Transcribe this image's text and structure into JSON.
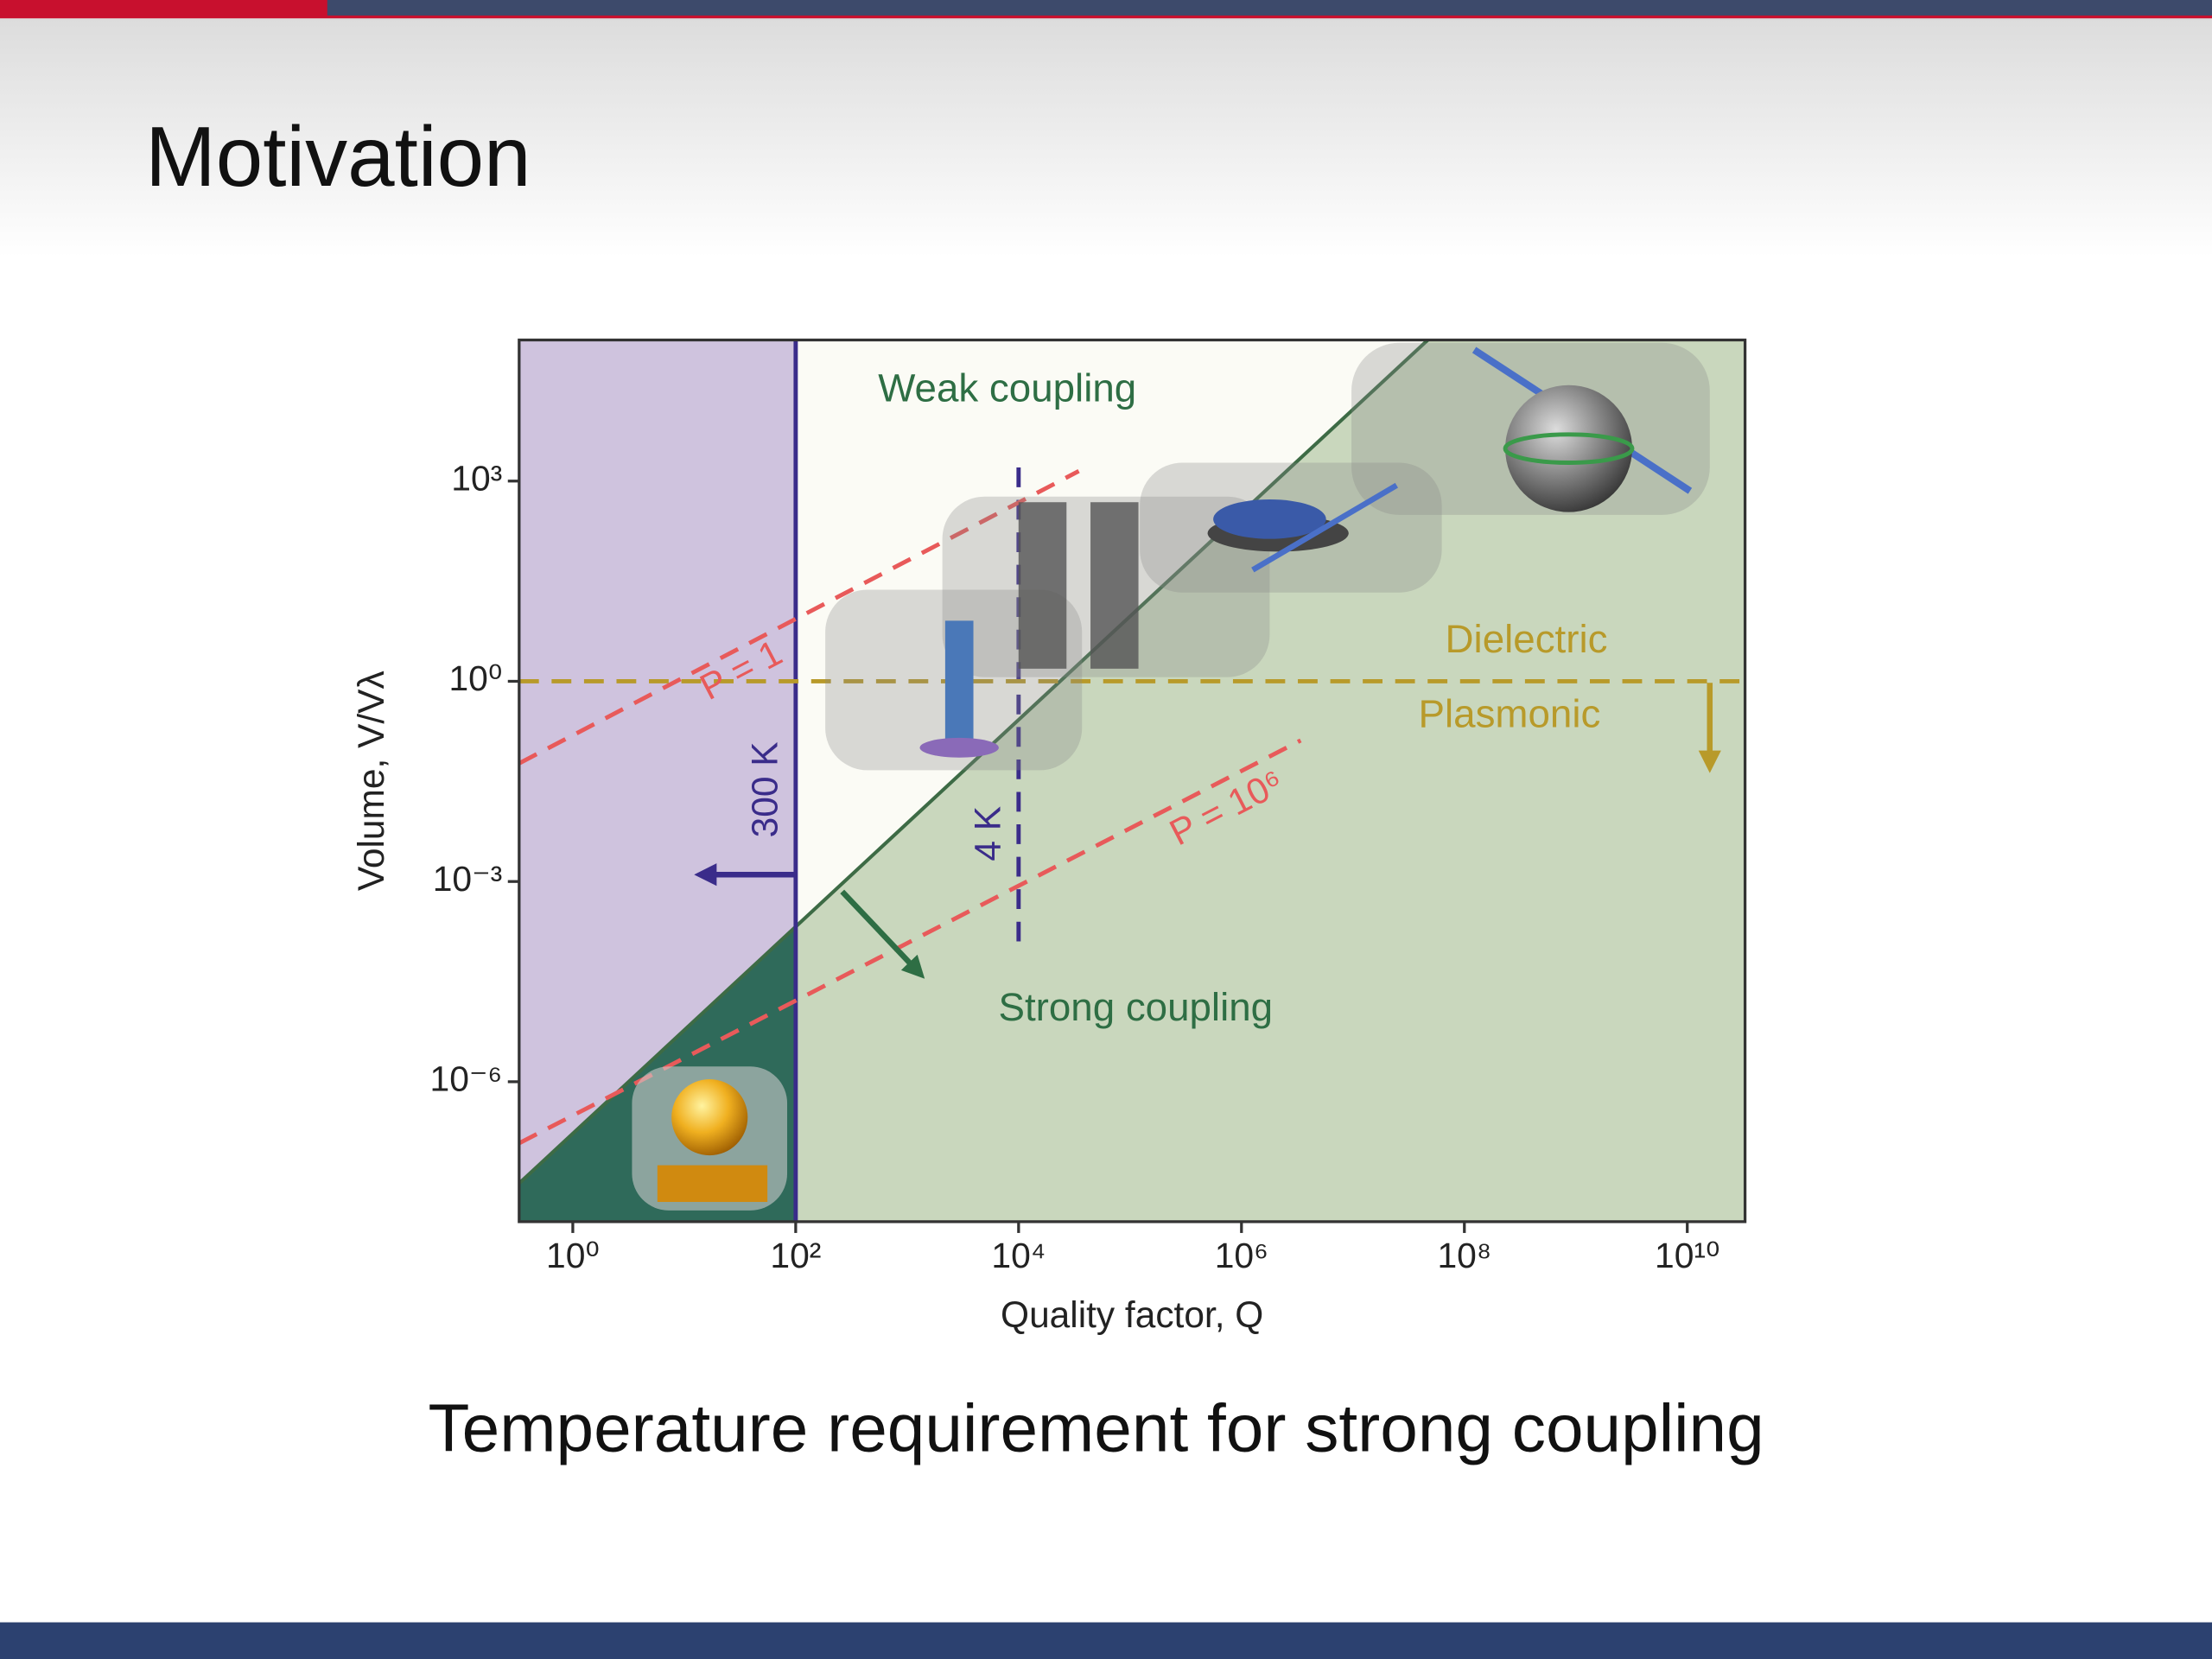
{
  "slide_title": "Motivation",
  "caption": "Temperature requirement for strong coupling",
  "chart_data": {
    "type": "line",
    "xlabel": "Quality factor, Q",
    "ylabel": "Volume, V/Vλ",
    "xscale": "log",
    "yscale": "log",
    "xlim": [
      0.33,
      33000000000
    ],
    "ylim": [
      8e-09,
      130000
    ],
    "xticks": [
      {
        "value": 1,
        "label": "10⁰"
      },
      {
        "value": 100,
        "label": "10²"
      },
      {
        "value": 10000,
        "label": "10⁴"
      },
      {
        "value": 1000000,
        "label": "10⁶"
      },
      {
        "value": 100000000,
        "label": "10⁸"
      },
      {
        "value": 10000000000,
        "label": "10¹⁰"
      }
    ],
    "yticks": [
      {
        "value": 1000,
        "label": "10³"
      },
      {
        "value": 1,
        "label": "10⁰"
      },
      {
        "value": 0.001,
        "label": "10⁻³"
      },
      {
        "value": 1e-06,
        "label": "10⁻⁶"
      }
    ],
    "background": "#fbfbf5",
    "overlap_color": "#2f6a5a",
    "series": [
      {
        "color": "#3d6b45",
        "fill": "below",
        "fill_color": "#c9d7bd",
        "x": [
          0.33,
          47000000
        ],
        "values": [
          3e-08,
          130000
        ]
      },
      {
        "name": "300 K",
        "color": "#3a2c8a",
        "fill": "left",
        "fill_color": "#cfc3de",
        "x": [
          100,
          100
        ],
        "values": [
          8e-09,
          130000
        ]
      },
      {
        "name": "4 K",
        "color": "#3a2c8a",
        "dash": true,
        "x": [
          10000,
          10000
        ],
        "values": [
          1600,
          0.00012
        ]
      },
      {
        "name": "P = 1",
        "color": "#e85a5a",
        "dash": true,
        "x": [
          0.33,
          34700
        ],
        "values": [
          0.059,
          1410
        ]
      },
      {
        "name": "P = 10⁶",
        "color": "#e85a5a",
        "dash": true,
        "x": [
          0.33,
          3400000
        ],
        "values": [
          1.2e-07,
          0.13
        ]
      },
      {
        "color": "#b89a2a",
        "dash": true,
        "x": [
          0.33,
          33000000000
        ],
        "values": [
          1,
          1
        ]
      }
    ],
    "annotations": [
      {
        "text": "Weak coupling",
        "color": "#2e6e44"
      },
      {
        "text": "Strong coupling",
        "color": "#2e6e44"
      },
      {
        "text": "Dielectric",
        "color": "#b89a2a"
      },
      {
        "text": "Plasmonic",
        "color": "#b89a2a"
      }
    ]
  }
}
